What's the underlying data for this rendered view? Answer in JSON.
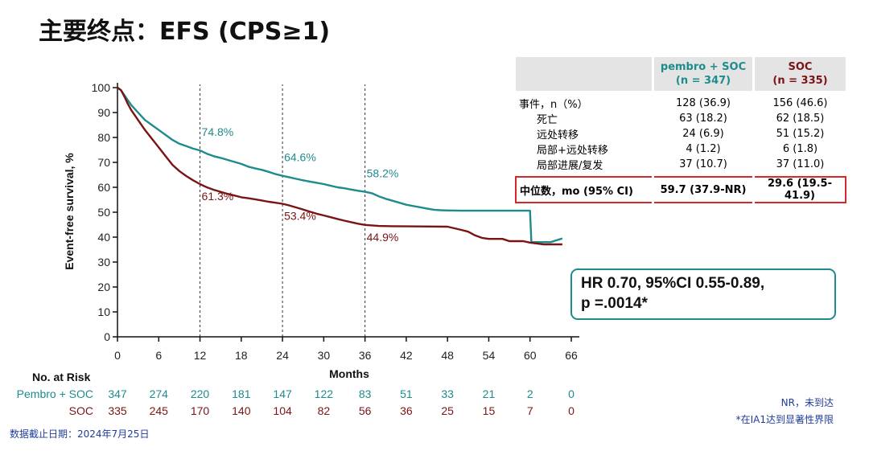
{
  "title": "主要终点：EFS (CPS≥1)",
  "chart_data": {
    "type": "line",
    "xlabel": "Months",
    "ylabel": "Event-free survival, %",
    "xlim": [
      0,
      66
    ],
    "ylim": [
      0,
      100
    ],
    "x_ticks": [
      0,
      6,
      12,
      18,
      24,
      30,
      36,
      42,
      48,
      54,
      60,
      66
    ],
    "y_ticks": [
      0,
      10,
      20,
      30,
      40,
      50,
      60,
      70,
      80,
      90,
      100
    ],
    "reference_lines_x": [
      12,
      24,
      36
    ],
    "series": [
      {
        "name": "Pembro + SOC",
        "color": "#1e8b8d",
        "points": [
          [
            0,
            100
          ],
          [
            0.5,
            99
          ],
          [
            1,
            97
          ],
          [
            1.5,
            95
          ],
          [
            2,
            93
          ],
          [
            3,
            90
          ],
          [
            4,
            87
          ],
          [
            5,
            85
          ],
          [
            6,
            83
          ],
          [
            7,
            81
          ],
          [
            8,
            79
          ],
          [
            9,
            77.5
          ],
          [
            10,
            76.5
          ],
          [
            11,
            75.5
          ],
          [
            12,
            74.8
          ],
          [
            13,
            73.5
          ],
          [
            14,
            72.5
          ],
          [
            15,
            71.8
          ],
          [
            16,
            71
          ],
          [
            17,
            70.2
          ],
          [
            18,
            69.4
          ],
          [
            19,
            68.3
          ],
          [
            20,
            67.6
          ],
          [
            21,
            67
          ],
          [
            22,
            66.2
          ],
          [
            23,
            65.3
          ],
          [
            24,
            64.6
          ],
          [
            25,
            64
          ],
          [
            26,
            63.4
          ],
          [
            27,
            62.8
          ],
          [
            28,
            62.3
          ],
          [
            29,
            61.8
          ],
          [
            30,
            61.3
          ],
          [
            31,
            60.6
          ],
          [
            32,
            60
          ],
          [
            33,
            59.6
          ],
          [
            34,
            59.1
          ],
          [
            35,
            58.6
          ],
          [
            36,
            58.2
          ],
          [
            37,
            57.6
          ],
          [
            38,
            56.4
          ],
          [
            39,
            55.4
          ],
          [
            40,
            54.6
          ],
          [
            41,
            53.8
          ],
          [
            42,
            53
          ],
          [
            43,
            52.5
          ],
          [
            44,
            52
          ],
          [
            45,
            51.5
          ],
          [
            46,
            51
          ],
          [
            47,
            50.8
          ],
          [
            48,
            50.7
          ],
          [
            50,
            50.6
          ],
          [
            60,
            50.6
          ],
          [
            60.2,
            38
          ],
          [
            63,
            38
          ],
          [
            64.7,
            39.5
          ]
        ],
        "labels": [
          {
            "x": 12,
            "value": "74.8%"
          },
          {
            "x": 24,
            "value": "64.6%"
          },
          {
            "x": 36,
            "value": "58.2%"
          }
        ]
      },
      {
        "name": "SOC",
        "color": "#7a1414",
        "points": [
          [
            0,
            100
          ],
          [
            0.5,
            99
          ],
          [
            1,
            96.5
          ],
          [
            1.5,
            93.5
          ],
          [
            2,
            91
          ],
          [
            3,
            87
          ],
          [
            4,
            83
          ],
          [
            5,
            79.5
          ],
          [
            6,
            76
          ],
          [
            7,
            72.5
          ],
          [
            8,
            69
          ],
          [
            9,
            66.5
          ],
          [
            10,
            64.5
          ],
          [
            11,
            62.8
          ],
          [
            12,
            61.3
          ],
          [
            13,
            60
          ],
          [
            14,
            59
          ],
          [
            15,
            58.2
          ],
          [
            16,
            57.4
          ],
          [
            17,
            56.7
          ],
          [
            18,
            56
          ],
          [
            19,
            55.6
          ],
          [
            20,
            55.2
          ],
          [
            21,
            54.7
          ],
          [
            22,
            54.2
          ],
          [
            23,
            53.8
          ],
          [
            24,
            53.4
          ],
          [
            25,
            52.7
          ],
          [
            26,
            51.9
          ],
          [
            27,
            51.1
          ],
          [
            28,
            50.2
          ],
          [
            29,
            49.4
          ],
          [
            30,
            48.7
          ],
          [
            31,
            48
          ],
          [
            32,
            47.3
          ],
          [
            33,
            46.6
          ],
          [
            34,
            46
          ],
          [
            35,
            45.4
          ],
          [
            36,
            44.9
          ],
          [
            37,
            44.7
          ],
          [
            38,
            44.5
          ],
          [
            40,
            44.4
          ],
          [
            44,
            44.3
          ],
          [
            48,
            44.2
          ],
          [
            50,
            42.9
          ],
          [
            51,
            42.2
          ],
          [
            52,
            40.7
          ],
          [
            53,
            39.7
          ],
          [
            54,
            39.3
          ],
          [
            56,
            39.3
          ],
          [
            57,
            38.4
          ],
          [
            59,
            38.4
          ],
          [
            60,
            37.8
          ],
          [
            62,
            37.1
          ],
          [
            64.7,
            37.1
          ]
        ],
        "labels": [
          {
            "x": 12,
            "value": "61.3%"
          },
          {
            "x": 24,
            "value": "53.4%"
          },
          {
            "x": 36,
            "value": "44.9%"
          }
        ]
      }
    ],
    "at_risk": {
      "header": "No. at Risk",
      "rows": [
        {
          "name": "Pembro + SOC",
          "color": "#1e8b8d",
          "values": [
            347,
            274,
            220,
            181,
            147,
            122,
            83,
            51,
            33,
            21,
            2,
            0
          ]
        },
        {
          "name": "SOC",
          "color": "#7a1414",
          "values": [
            335,
            245,
            170,
            140,
            104,
            82,
            56,
            36,
            25,
            15,
            7,
            0
          ]
        }
      ]
    }
  },
  "table": {
    "header_pembro": {
      "line1": "pembro + SOC",
      "line2": "(n = 347)"
    },
    "header_soc": {
      "line1": "SOC",
      "line2": "(n = 335)"
    },
    "rows": [
      {
        "label": "事件，n（%）",
        "pembro": "128 (36.9)",
        "soc": "156 (46.6)"
      },
      {
        "label": "死亡",
        "pembro": "63 (18.2)",
        "soc": "62 (18.5)"
      },
      {
        "label": "远处转移",
        "pembro": "24 (6.9)",
        "soc": "51 (15.2)"
      },
      {
        "label": "局部+远处转移",
        "pembro": "4 (1.2)",
        "soc": "6 (1.8)"
      },
      {
        "label": "局部进展/复发",
        "pembro": "37 (10.7)",
        "soc": "37 (11.0)"
      }
    ],
    "median_row": {
      "label": "中位数，mo (95% CI)",
      "pembro": "59.7 (37.9-NR)",
      "soc": "29.6 (19.5-41.9)"
    }
  },
  "hr_box": {
    "line1": "HR 0.70, 95%CI 0.55-0.89,",
    "line2": "p =.0014*"
  },
  "footnotes": {
    "nr": "NR，未到达",
    "ia1": "*在IA1达到显著性界限"
  },
  "data_cutoff": "数据截止日期：2024年7月25日"
}
